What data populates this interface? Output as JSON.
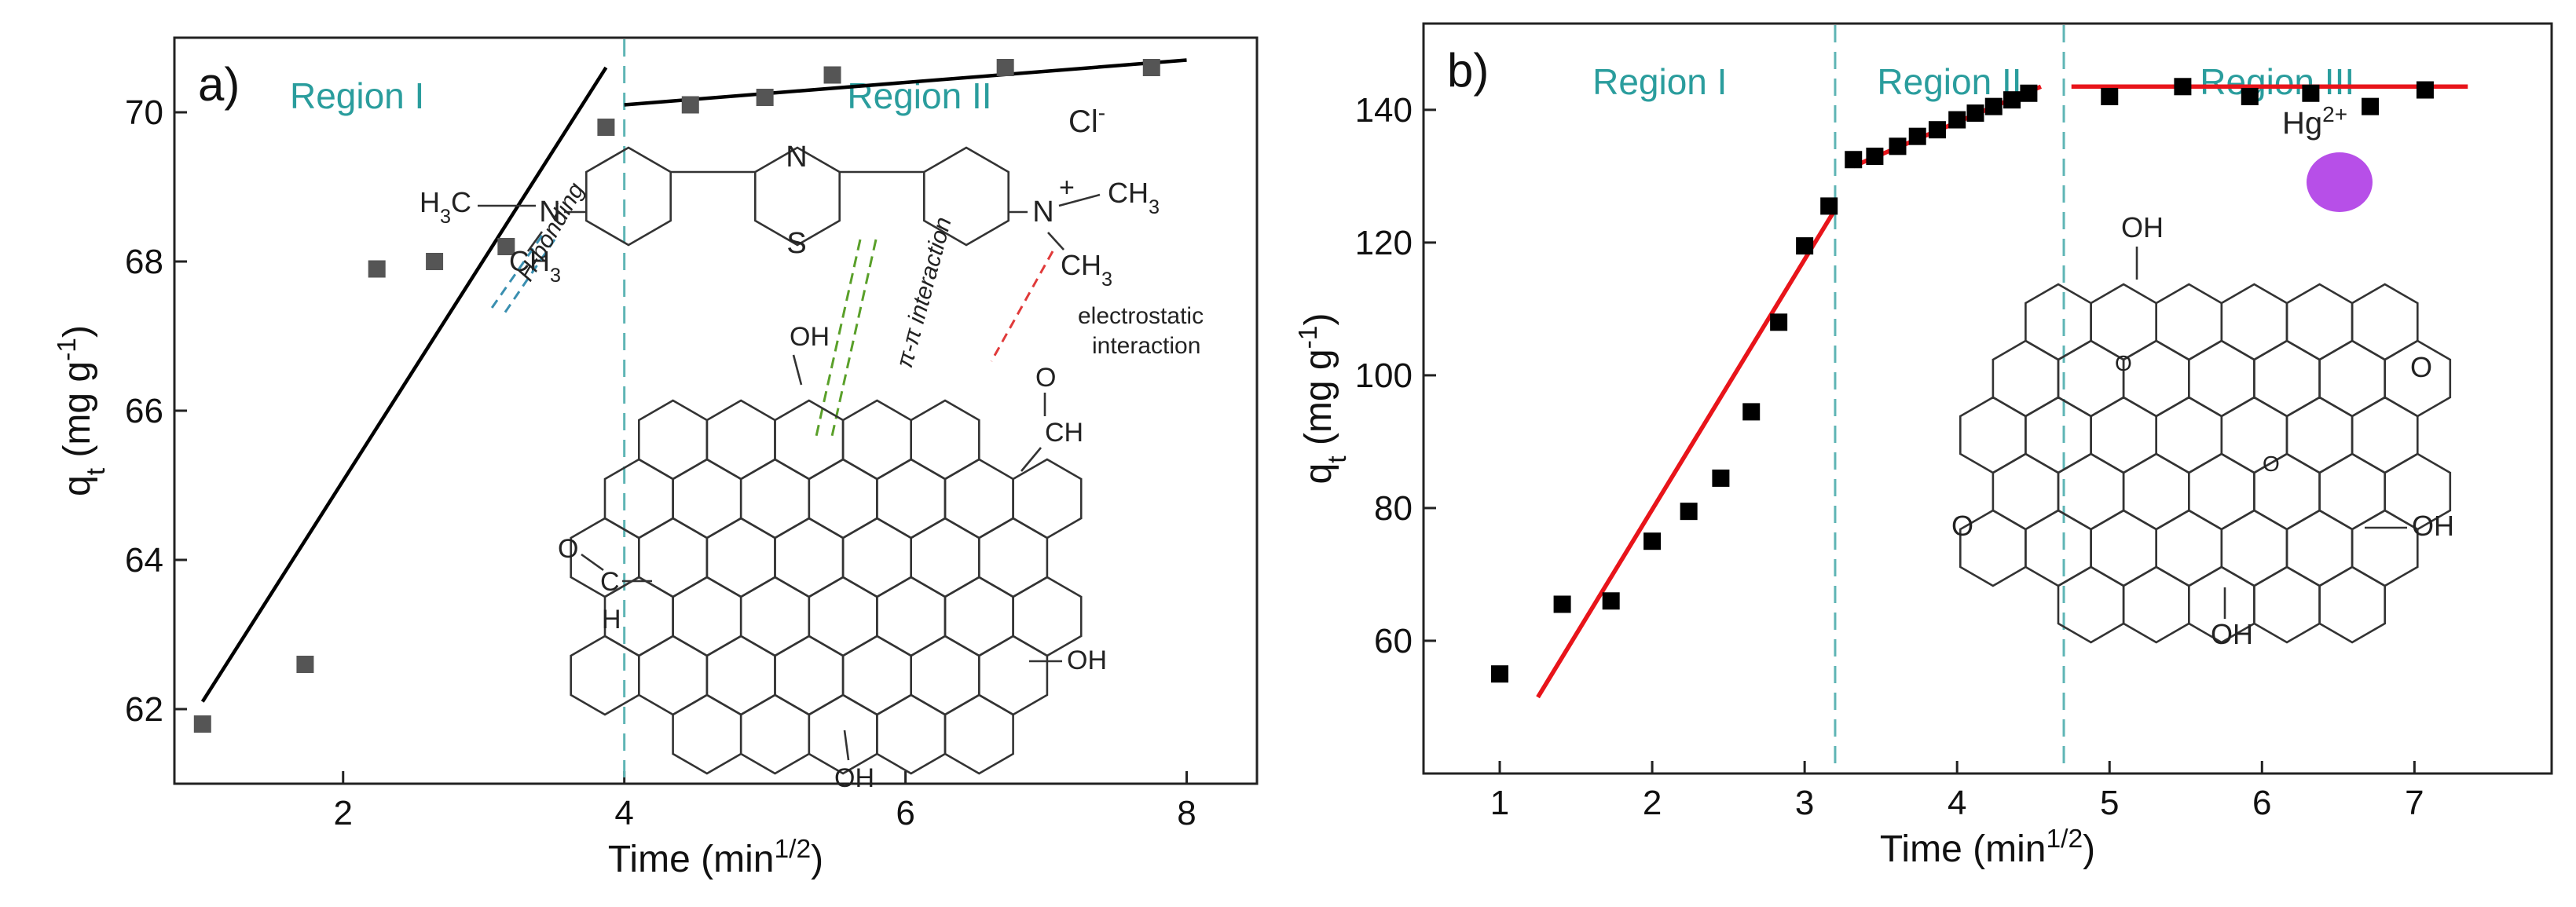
{
  "chart_data": [
    {
      "type": "scatter",
      "panel_label": "a)",
      "xlabel": "Time (min",
      "xlabel_sup": "1/2",
      "xlabel_end": ")",
      "ylabel": "q",
      "ylabel_sub": "t",
      "ylabel_unit": " (mg g",
      "ylabel_sup": "-1",
      "ylabel_end": ")",
      "xlim": [
        0.8,
        8.5
      ],
      "ylim": [
        61.0,
        71.0
      ],
      "xticks": [
        2,
        4,
        6,
        8
      ],
      "yticks": [
        62,
        64,
        66,
        68,
        70
      ],
      "points": [
        {
          "x": 1.0,
          "y": 61.8
        },
        {
          "x": 1.73,
          "y": 62.6
        },
        {
          "x": 2.24,
          "y": 67.9
        },
        {
          "x": 2.65,
          "y": 68.0
        },
        {
          "x": 3.16,
          "y": 68.2
        },
        {
          "x": 3.87,
          "y": 69.8
        },
        {
          "x": 4.47,
          "y": 70.1
        },
        {
          "x": 5.0,
          "y": 70.2
        },
        {
          "x": 5.48,
          "y": 70.5
        },
        {
          "x": 6.71,
          "y": 70.6
        },
        {
          "x": 7.75,
          "y": 70.6
        }
      ],
      "marker_color": "#555555",
      "fit_color": "#000000",
      "fits": [
        {
          "x": [
            1.0,
            3.87
          ],
          "y": [
            62.1,
            70.6
          ]
        },
        {
          "x": [
            4.0,
            8.0
          ],
          "y": [
            70.1,
            70.7
          ]
        }
      ],
      "region_boundaries": [
        4.0
      ],
      "regions": [
        {
          "label": "Region I",
          "x": 2.1
        },
        {
          "label": "Region II",
          "x": 6.1
        }
      ],
      "annotations": {
        "h3c": "H3C",
        "ch3_left": "CH3",
        "ch3_right_top": "CH3",
        "ch3_right_bottom": "CH3",
        "n_atom": "N",
        "n_ring": "N",
        "n_plus": "N",
        "plus": "+",
        "s_atom": "S",
        "cl": "Cl",
        "cl_sup": "-",
        "h_bonding": "H-bonding",
        "pi_pi": "π-π interaction",
        "electrostatic_1": "electrostatic",
        "electrostatic_2": "interaction",
        "oh_top": "OH",
        "oh_right": "OH",
        "oh_bottom": "OH",
        "cho_right_o": "O",
        "cho_right_ch": "CH",
        "cho_left_o": "O",
        "cho_left_c": "C",
        "cho_left_h": "H"
      }
    },
    {
      "type": "scatter",
      "panel_label": "b)",
      "xlabel": "Time (min",
      "xlabel_sup": "1/2",
      "xlabel_end": ")",
      "ylabel": "q",
      "ylabel_sub": "t",
      "ylabel_unit": " (mg g",
      "ylabel_sup": "-1",
      "ylabel_end": ")",
      "xlim": [
        0.5,
        7.9
      ],
      "ylim": [
        40,
        153
      ],
      "xticks": [
        1,
        2,
        3,
        4,
        5,
        6,
        7
      ],
      "yticks": [
        60,
        80,
        100,
        120,
        140
      ],
      "points": [
        {
          "x": 1.0,
          "y": 55.0
        },
        {
          "x": 1.41,
          "y": 65.5
        },
        {
          "x": 1.73,
          "y": 66.0
        },
        {
          "x": 2.0,
          "y": 75.0
        },
        {
          "x": 2.24,
          "y": 79.5
        },
        {
          "x": 2.45,
          "y": 84.5
        },
        {
          "x": 2.65,
          "y": 94.5
        },
        {
          "x": 2.83,
          "y": 108.0
        },
        {
          "x": 3.0,
          "y": 119.5
        },
        {
          "x": 3.16,
          "y": 125.5
        },
        {
          "x": 3.32,
          "y": 132.5
        },
        {
          "x": 3.46,
          "y": 133.0
        },
        {
          "x": 3.61,
          "y": 134.5
        },
        {
          "x": 3.74,
          "y": 136.0
        },
        {
          "x": 3.87,
          "y": 137.0
        },
        {
          "x": 4.0,
          "y": 138.5
        },
        {
          "x": 4.12,
          "y": 139.5
        },
        {
          "x": 4.24,
          "y": 140.5
        },
        {
          "x": 4.36,
          "y": 141.5
        },
        {
          "x": 4.47,
          "y": 142.5
        },
        {
          "x": 5.0,
          "y": 142.0
        },
        {
          "x": 5.48,
          "y": 143.5
        },
        {
          "x": 5.92,
          "y": 142.0
        },
        {
          "x": 6.32,
          "y": 142.5
        },
        {
          "x": 6.71,
          "y": 140.5
        },
        {
          "x": 7.07,
          "y": 143.0
        }
      ],
      "marker_color": "#000000",
      "fit_color": "#e8141a",
      "fits": [
        {
          "x": [
            1.25,
            3.2
          ],
          "y": [
            51.5,
            125.0
          ]
        },
        {
          "x": [
            3.32,
            4.55
          ],
          "y": [
            131.5,
            143.5
          ]
        },
        {
          "x": [
            4.75,
            7.35
          ],
          "y": [
            143.5,
            143.5
          ]
        }
      ],
      "region_boundaries": [
        3.2,
        4.7
      ],
      "regions": [
        {
          "label": "Region I",
          "x": 2.05
        },
        {
          "label": "Region II",
          "x": 3.95
        },
        {
          "label": "Region III",
          "x": 6.1
        }
      ],
      "annotations": {
        "hg": "Hg",
        "hg_sup": "2+",
        "hg_color": "#b74fe8",
        "oh_top": "OH",
        "oh_right": "OH",
        "oh_bottom": "OH",
        "o_epoxy_right": "O",
        "o_epoxy_left": "O",
        "o_inner_1": "O",
        "o_inner_2": "O"
      }
    }
  ]
}
